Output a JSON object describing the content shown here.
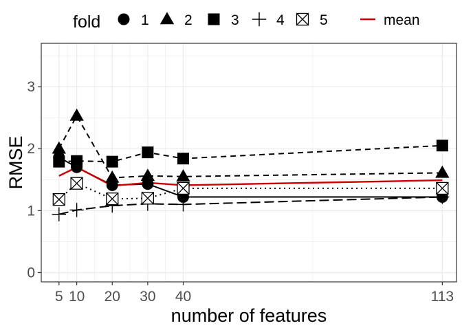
{
  "chart_data": {
    "type": "line",
    "title": "",
    "xlabel": "number of features",
    "ylabel": "RMSE",
    "x_ticks": [
      5,
      10,
      20,
      30,
      40,
      113
    ],
    "y_ticks": [
      0,
      1,
      2,
      3
    ],
    "xlim": [
      0,
      117
    ],
    "ylim": [
      -0.15,
      3.7
    ],
    "grid": true,
    "legend": {
      "position": "top",
      "title": "fold",
      "fold_entries": [
        "1",
        "2",
        "3",
        "4",
        "5"
      ],
      "mean_entry": "mean"
    },
    "x": [
      5,
      10,
      20,
      30,
      40,
      113
    ],
    "series": [
      {
        "name": "1",
        "marker": "circle",
        "linestyle": "solid",
        "values": [
          1.86,
          1.7,
          1.41,
          1.43,
          1.22,
          1.22
        ]
      },
      {
        "name": "2",
        "marker": "triangle",
        "linestyle": "dashed",
        "values": [
          2.0,
          2.53,
          1.53,
          1.56,
          1.55,
          1.61
        ]
      },
      {
        "name": "3",
        "marker": "square",
        "linestyle": "dashed",
        "values": [
          1.79,
          1.8,
          1.79,
          1.94,
          1.84,
          2.05
        ]
      },
      {
        "name": "4",
        "marker": "plus",
        "linestyle": "longdash",
        "values": [
          0.94,
          1.01,
          1.08,
          1.11,
          1.1,
          1.22
        ]
      },
      {
        "name": "5",
        "marker": "boxcross",
        "linestyle": "dotted",
        "values": [
          1.18,
          1.44,
          1.19,
          1.2,
          1.36,
          1.36
        ]
      },
      {
        "name": "mean",
        "marker": "none",
        "linestyle": "solid",
        "color": "#cc0000",
        "values": [
          1.56,
          1.7,
          1.4,
          1.45,
          1.41,
          1.49
        ]
      }
    ],
    "colors": {
      "series": "#000000",
      "mean": "#cc0000",
      "grid": "#ebebeb",
      "panel_border": "#333333"
    }
  }
}
